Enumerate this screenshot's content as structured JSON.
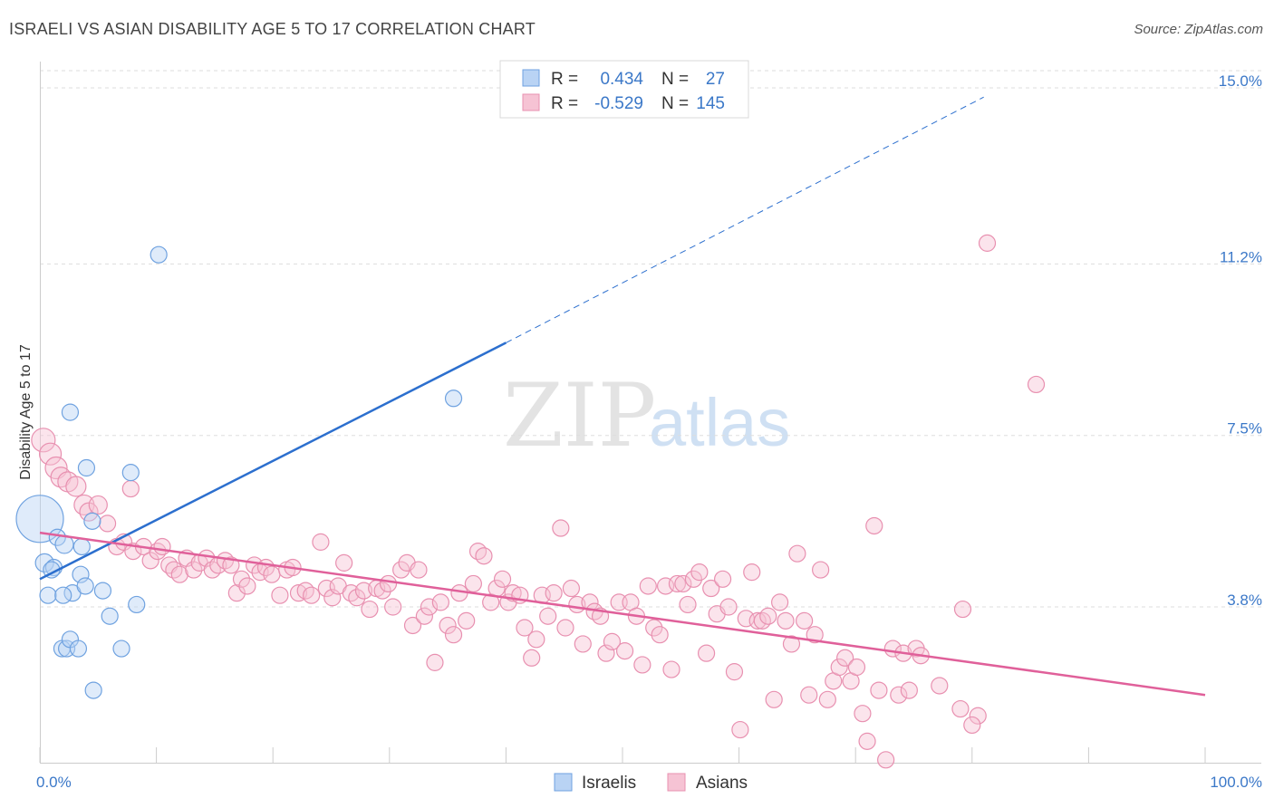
{
  "header": {
    "title": "ISRAELI VS ASIAN DISABILITY AGE 5 TO 17 CORRELATION CHART",
    "source": "Source: ZipAtlas.com"
  },
  "watermark": {
    "zip": "ZIP",
    "atlas": "atlas"
  },
  "colors": {
    "israelis": "#6fa2e0",
    "israelis_fill": "#b9d3f4",
    "israelis_line": "#2c6fce",
    "asians": "#e890b0",
    "asians_fill": "#f6c3d4",
    "asians_line": "#e0609a",
    "tick": "#3b78c8",
    "grid": "#dddddd"
  },
  "legend_top": {
    "rows": [
      {
        "r_label": "R =",
        "r_value": "0.434",
        "n_label": "N =",
        "n_value": "27"
      },
      {
        "r_label": "R =",
        "r_value": "-0.529",
        "n_label": "N =",
        "n_value": "145"
      }
    ]
  },
  "legend_bottom": {
    "items": [
      "Israelis",
      "Asians"
    ]
  },
  "chart_data": {
    "type": "scatter",
    "title": "ISRAELI VS ASIAN DISABILITY AGE 5 TO 17 CORRELATION CHART",
    "xlabel": "",
    "ylabel": "Disability Age 5 to 17",
    "xlim": [
      0,
      100
    ],
    "ylim": [
      0,
      15.8
    ],
    "x_tick_labels": [
      "0.0%",
      "100.0%"
    ],
    "y_ticks": [
      {
        "value": 3.8,
        "label": "3.8%"
      },
      {
        "value": 7.5,
        "label": "7.5%"
      },
      {
        "value": 11.2,
        "label": "11.2%"
      },
      {
        "value": 15.0,
        "label": "15.0%"
      }
    ],
    "grid": true,
    "legend": "top-center and bottom",
    "series": [
      {
        "name": "Israelis",
        "r": 0.434,
        "n": 27,
        "trend": {
          "x0": 0,
          "y0": 4.4,
          "x1": 40,
          "y1": 9.5,
          "dashed_to_x": 81,
          "dashed_to_y": 14.8
        },
        "points": [
          [
            0.0,
            5.7,
            26
          ],
          [
            0.4,
            4.75,
            10
          ],
          [
            0.7,
            4.05,
            9
          ],
          [
            1.2,
            4.65,
            9
          ],
          [
            1.5,
            5.3,
            9
          ],
          [
            2.1,
            5.15,
            10
          ],
          [
            2.6,
            8.0,
            9
          ],
          [
            2.8,
            4.1,
            9
          ],
          [
            1.9,
            2.9,
            9
          ],
          [
            2.3,
            2.9,
            9
          ],
          [
            2.6,
            3.1,
            9
          ],
          [
            3.3,
            2.9,
            9
          ],
          [
            3.5,
            4.5,
            9
          ],
          [
            3.9,
            4.25,
            9
          ],
          [
            4.0,
            6.8,
            9
          ],
          [
            3.6,
            5.1,
            9
          ],
          [
            4.5,
            5.65,
            9
          ],
          [
            4.6,
            2.0,
            9
          ],
          [
            5.4,
            4.15,
            9
          ],
          [
            6.0,
            3.6,
            9
          ],
          [
            7.0,
            2.9,
            9
          ],
          [
            7.8,
            6.7,
            9
          ],
          [
            8.3,
            3.85,
            9
          ],
          [
            10.2,
            11.4,
            9
          ],
          [
            35.5,
            8.3,
            9
          ],
          [
            1.0,
            4.6,
            9
          ],
          [
            2.0,
            4.05,
            9
          ]
        ]
      },
      {
        "name": "Asians",
        "r": -0.529,
        "n": 145,
        "trend": {
          "x0": 0,
          "y0": 5.4,
          "x1": 100,
          "y1": 1.9
        },
        "points": [
          [
            0.3,
            7.4,
            13
          ],
          [
            0.9,
            7.1,
            12
          ],
          [
            1.4,
            6.8,
            12
          ],
          [
            1.8,
            6.6,
            11
          ],
          [
            2.4,
            6.5,
            11
          ],
          [
            3.1,
            6.4,
            11
          ],
          [
            3.8,
            6.0,
            11
          ],
          [
            4.2,
            5.85,
            10
          ],
          [
            5.0,
            6.0,
            10
          ],
          [
            5.8,
            5.6,
            9
          ],
          [
            7.8,
            6.35,
            9
          ],
          [
            6.6,
            5.1,
            9
          ],
          [
            7.2,
            5.2,
            9
          ],
          [
            8.0,
            5.0,
            9
          ],
          [
            8.9,
            5.1,
            9
          ],
          [
            9.5,
            4.8,
            9
          ],
          [
            10.1,
            5.0,
            9
          ],
          [
            10.5,
            5.1,
            9
          ],
          [
            11.1,
            4.7,
            9
          ],
          [
            11.5,
            4.6,
            9
          ],
          [
            12.0,
            4.5,
            9
          ],
          [
            12.6,
            4.85,
            9
          ],
          [
            13.2,
            4.6,
            9
          ],
          [
            13.7,
            4.75,
            9
          ],
          [
            14.3,
            4.85,
            9
          ],
          [
            14.8,
            4.6,
            9
          ],
          [
            15.3,
            4.7,
            9
          ],
          [
            15.9,
            4.8,
            9
          ],
          [
            16.4,
            4.7,
            9
          ],
          [
            16.9,
            4.1,
            9
          ],
          [
            17.3,
            4.4,
            9
          ],
          [
            17.8,
            4.25,
            9
          ],
          [
            18.4,
            4.7,
            9
          ],
          [
            18.9,
            4.55,
            9
          ],
          [
            19.4,
            4.65,
            9
          ],
          [
            19.9,
            4.5,
            9
          ],
          [
            20.6,
            4.05,
            9
          ],
          [
            21.2,
            4.6,
            9
          ],
          [
            21.7,
            4.65,
            9
          ],
          [
            22.2,
            4.1,
            9
          ],
          [
            22.8,
            4.15,
            9
          ],
          [
            23.3,
            4.05,
            9
          ],
          [
            24.1,
            5.2,
            9
          ],
          [
            24.6,
            4.2,
            9
          ],
          [
            25.1,
            4.0,
            9
          ],
          [
            25.6,
            4.25,
            9
          ],
          [
            26.1,
            4.75,
            9
          ],
          [
            26.7,
            4.1,
            9
          ],
          [
            27.2,
            4.0,
            9
          ],
          [
            27.8,
            4.15,
            9
          ],
          [
            28.3,
            3.75,
            9
          ],
          [
            28.9,
            4.2,
            9
          ],
          [
            29.4,
            4.15,
            9
          ],
          [
            29.9,
            4.3,
            9
          ],
          [
            30.3,
            3.8,
            9
          ],
          [
            31.0,
            4.6,
            9
          ],
          [
            31.5,
            4.75,
            9
          ],
          [
            32.0,
            3.4,
            9
          ],
          [
            32.5,
            4.6,
            9
          ],
          [
            33.0,
            3.6,
            9
          ],
          [
            33.4,
            3.8,
            9
          ],
          [
            33.9,
            2.6,
            9
          ],
          [
            34.4,
            3.9,
            9
          ],
          [
            35.0,
            3.4,
            9
          ],
          [
            35.5,
            3.2,
            9
          ],
          [
            36.0,
            4.1,
            9
          ],
          [
            36.6,
            3.5,
            9
          ],
          [
            37.2,
            4.3,
            9
          ],
          [
            37.6,
            5.0,
            9
          ],
          [
            38.1,
            4.9,
            9
          ],
          [
            38.7,
            3.9,
            9
          ],
          [
            39.2,
            4.2,
            9
          ],
          [
            39.7,
            4.4,
            9
          ],
          [
            40.2,
            3.9,
            9
          ],
          [
            40.6,
            4.1,
            9
          ],
          [
            41.2,
            4.05,
            9
          ],
          [
            41.6,
            3.35,
            9
          ],
          [
            42.2,
            2.7,
            9
          ],
          [
            42.6,
            3.1,
            9
          ],
          [
            43.1,
            4.05,
            9
          ],
          [
            43.6,
            3.6,
            9
          ],
          [
            44.1,
            4.1,
            9
          ],
          [
            44.7,
            5.5,
            9
          ],
          [
            45.1,
            3.35,
            9
          ],
          [
            45.6,
            4.2,
            9
          ],
          [
            46.1,
            3.85,
            9
          ],
          [
            46.6,
            3.0,
            9
          ],
          [
            47.2,
            3.9,
            9
          ],
          [
            47.6,
            3.7,
            9
          ],
          [
            48.1,
            3.6,
            9
          ],
          [
            48.6,
            2.8,
            9
          ],
          [
            49.1,
            3.05,
            9
          ],
          [
            49.7,
            3.9,
            9
          ],
          [
            50.2,
            2.85,
            9
          ],
          [
            50.7,
            3.9,
            9
          ],
          [
            51.2,
            3.6,
            9
          ],
          [
            51.7,
            2.55,
            9
          ],
          [
            52.2,
            4.25,
            9
          ],
          [
            52.7,
            3.35,
            9
          ],
          [
            53.2,
            3.2,
            9
          ],
          [
            53.7,
            4.25,
            9
          ],
          [
            54.2,
            2.45,
            9
          ],
          [
            54.7,
            4.3,
            9
          ],
          [
            55.2,
            4.3,
            9
          ],
          [
            55.6,
            3.85,
            9
          ],
          [
            56.1,
            4.4,
            9
          ],
          [
            56.6,
            4.55,
            9
          ],
          [
            57.2,
            2.8,
            9
          ],
          [
            57.6,
            4.2,
            9
          ],
          [
            58.1,
            3.65,
            9
          ],
          [
            58.6,
            4.4,
            9
          ],
          [
            59.1,
            3.8,
            9
          ],
          [
            59.6,
            2.4,
            9
          ],
          [
            60.1,
            1.15,
            9
          ],
          [
            60.6,
            3.55,
            9
          ],
          [
            61.1,
            4.55,
            9
          ],
          [
            61.6,
            3.5,
            9
          ],
          [
            62.0,
            3.5,
            9
          ],
          [
            62.5,
            3.6,
            9
          ],
          [
            63.0,
            1.8,
            9
          ],
          [
            63.5,
            3.9,
            9
          ],
          [
            64.0,
            3.5,
            9
          ],
          [
            64.5,
            3.0,
            9
          ],
          [
            65.0,
            4.95,
            9
          ],
          [
            65.6,
            3.5,
            9
          ],
          [
            66.0,
            1.9,
            9
          ],
          [
            66.5,
            3.2,
            9
          ],
          [
            67.0,
            4.6,
            9
          ],
          [
            67.6,
            1.8,
            9
          ],
          [
            68.1,
            2.2,
            9
          ],
          [
            68.6,
            2.5,
            9
          ],
          [
            69.1,
            2.7,
            9
          ],
          [
            69.6,
            2.2,
            9
          ],
          [
            70.1,
            2.5,
            9
          ],
          [
            70.6,
            1.5,
            9
          ],
          [
            71.0,
            0.9,
            9
          ],
          [
            71.6,
            5.55,
            9
          ],
          [
            72.0,
            2.0,
            9
          ],
          [
            72.6,
            0.5,
            9
          ],
          [
            73.2,
            2.9,
            9
          ],
          [
            73.7,
            1.9,
            9
          ],
          [
            74.1,
            2.8,
            9
          ],
          [
            74.6,
            2.0,
            9
          ],
          [
            75.2,
            2.9,
            9
          ],
          [
            77.2,
            2.1,
            9
          ],
          [
            79.2,
            3.75,
            9
          ],
          [
            75.6,
            2.75,
            9
          ],
          [
            80.5,
            1.45,
            9
          ],
          [
            80.0,
            1.25,
            9
          ],
          [
            79.0,
            1.6,
            9
          ],
          [
            81.3,
            11.65,
            9
          ],
          [
            85.5,
            8.6,
            9
          ]
        ]
      }
    ]
  }
}
